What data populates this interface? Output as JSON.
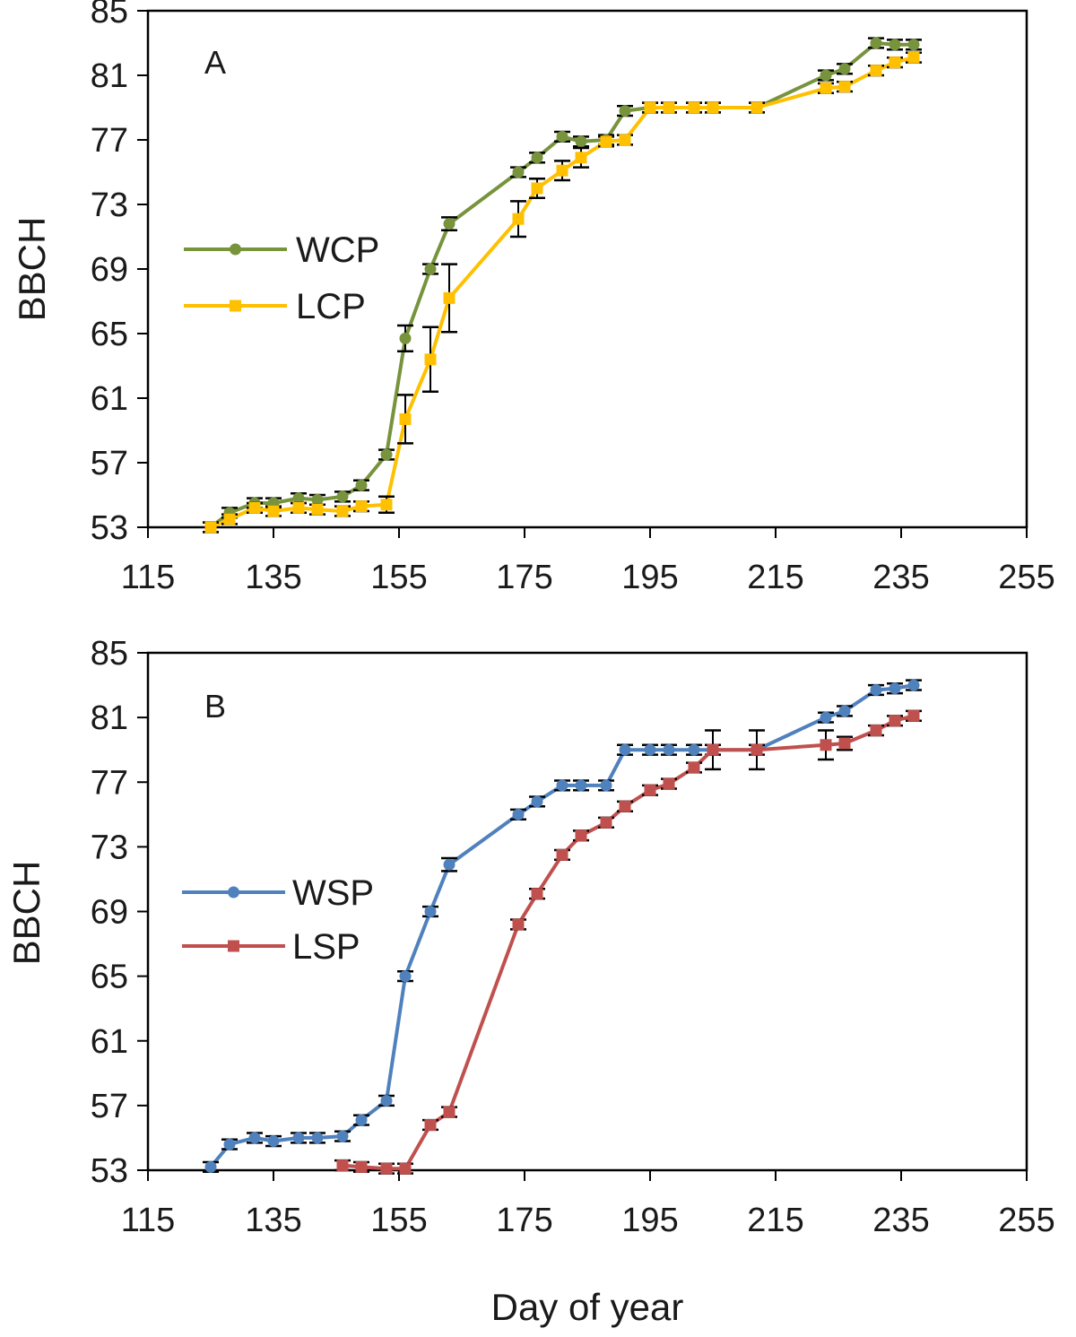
{
  "figure": {
    "xlabel": "Day of year"
  },
  "chart_data": [
    {
      "type": "line",
      "panel_label": "A",
      "ylabel": "BBCH",
      "xlim": [
        115,
        255
      ],
      "ylim": [
        53,
        85
      ],
      "x_ticks": [
        "115",
        "135",
        "155",
        "175",
        "195",
        "215",
        "235",
        "255"
      ],
      "y_ticks": [
        "53",
        "57",
        "61",
        "65",
        "69",
        "73",
        "77",
        "81",
        "85"
      ],
      "legend_position": "middle-left",
      "grid": false,
      "series": [
        {
          "name": "WCP",
          "color": "#77933c",
          "marker": "circle",
          "points": [
            {
              "x": 125,
              "y": 53.0,
              "err": 0.3
            },
            {
              "x": 128,
              "y": 53.9,
              "err": 0.3
            },
            {
              "x": 132,
              "y": 54.5,
              "err": 0.3
            },
            {
              "x": 135,
              "y": 54.5,
              "err": 0.3
            },
            {
              "x": 139,
              "y": 54.8,
              "err": 0.3
            },
            {
              "x": 142,
              "y": 54.7,
              "err": 0.3
            },
            {
              "x": 146,
              "y": 54.9,
              "err": 0.3
            },
            {
              "x": 149,
              "y": 55.6,
              "err": 0.3
            },
            {
              "x": 153,
              "y": 57.5,
              "err": 0.3
            },
            {
              "x": 156,
              "y": 64.7,
              "err": 0.8
            },
            {
              "x": 160,
              "y": 69.0,
              "err": 0.3
            },
            {
              "x": 163,
              "y": 71.8,
              "err": 0.4
            },
            {
              "x": 174,
              "y": 75.0,
              "err": 0.3
            },
            {
              "x": 177,
              "y": 75.9,
              "err": 0.3
            },
            {
              "x": 181,
              "y": 77.2,
              "err": 0.3
            },
            {
              "x": 184,
              "y": 76.9,
              "err": 0.3
            },
            {
              "x": 188,
              "y": 77.0,
              "err": 0.3
            },
            {
              "x": 191,
              "y": 78.8,
              "err": 0.3
            },
            {
              "x": 195,
              "y": 79.0,
              "err": 0.3
            },
            {
              "x": 198,
              "y": 79.0,
              "err": 0.3
            },
            {
              "x": 202,
              "y": 79.0,
              "err": 0.3
            },
            {
              "x": 205,
              "y": 79.0,
              "err": 0.3
            },
            {
              "x": 212,
              "y": 79.0,
              "err": 0.3
            },
            {
              "x": 223,
              "y": 81.0,
              "err": 0.3
            },
            {
              "x": 226,
              "y": 81.4,
              "err": 0.3
            },
            {
              "x": 231,
              "y": 83.0,
              "err": 0.3
            },
            {
              "x": 234,
              "y": 82.9,
              "err": 0.3
            },
            {
              "x": 237,
              "y": 82.9,
              "err": 0.3
            }
          ]
        },
        {
          "name": "LCP",
          "color": "#ffc000",
          "marker": "square",
          "points": [
            {
              "x": 125,
              "y": 53.0,
              "err": 0.3
            },
            {
              "x": 128,
              "y": 53.5,
              "err": 0.3
            },
            {
              "x": 132,
              "y": 54.2,
              "err": 0.3
            },
            {
              "x": 135,
              "y": 54.0,
              "err": 0.3
            },
            {
              "x": 139,
              "y": 54.2,
              "err": 0.3
            },
            {
              "x": 142,
              "y": 54.1,
              "err": 0.3
            },
            {
              "x": 146,
              "y": 54.0,
              "err": 0.3
            },
            {
              "x": 149,
              "y": 54.3,
              "err": 0.3
            },
            {
              "x": 153,
              "y": 54.4,
              "err": 0.5
            },
            {
              "x": 156,
              "y": 59.7,
              "err": 1.5
            },
            {
              "x": 160,
              "y": 63.4,
              "err": 2.0
            },
            {
              "x": 163,
              "y": 67.2,
              "err": 2.1
            },
            {
              "x": 174,
              "y": 72.1,
              "err": 1.1
            },
            {
              "x": 177,
              "y": 74.0,
              "err": 0.6
            },
            {
              "x": 181,
              "y": 75.1,
              "err": 0.6
            },
            {
              "x": 184,
              "y": 75.9,
              "err": 0.6
            },
            {
              "x": 188,
              "y": 76.9,
              "err": 0.3
            },
            {
              "x": 191,
              "y": 77.0,
              "err": 0.3
            },
            {
              "x": 195,
              "y": 79.0,
              "err": 0.3
            },
            {
              "x": 198,
              "y": 79.0,
              "err": 0.3
            },
            {
              "x": 202,
              "y": 79.0,
              "err": 0.3
            },
            {
              "x": 205,
              "y": 79.0,
              "err": 0.3
            },
            {
              "x": 212,
              "y": 79.0,
              "err": 0.3
            },
            {
              "x": 223,
              "y": 80.2,
              "err": 0.3
            },
            {
              "x": 226,
              "y": 80.3,
              "err": 0.3
            },
            {
              "x": 231,
              "y": 81.3,
              "err": 0.3
            },
            {
              "x": 234,
              "y": 81.8,
              "err": 0.3
            },
            {
              "x": 237,
              "y": 82.1,
              "err": 0.3
            }
          ]
        }
      ]
    },
    {
      "type": "line",
      "panel_label": "B",
      "ylabel": "BBCH",
      "xlim": [
        115,
        255
      ],
      "ylim": [
        53,
        85
      ],
      "x_ticks": [
        "115",
        "135",
        "155",
        "175",
        "195",
        "215",
        "235",
        "255"
      ],
      "y_ticks": [
        "53",
        "57",
        "61",
        "65",
        "69",
        "73",
        "77",
        "81",
        "85"
      ],
      "legend_position": "middle-left",
      "grid": false,
      "series": [
        {
          "name": "WSP",
          "color": "#4f81bd",
          "marker": "circle",
          "points": [
            {
              "x": 125,
              "y": 53.2,
              "err": 0.3
            },
            {
              "x": 128,
              "y": 54.6,
              "err": 0.3
            },
            {
              "x": 132,
              "y": 55.0,
              "err": 0.3
            },
            {
              "x": 135,
              "y": 54.8,
              "err": 0.3
            },
            {
              "x": 139,
              "y": 55.0,
              "err": 0.3
            },
            {
              "x": 142,
              "y": 55.0,
              "err": 0.3
            },
            {
              "x": 146,
              "y": 55.1,
              "err": 0.3
            },
            {
              "x": 149,
              "y": 56.1,
              "err": 0.3
            },
            {
              "x": 153,
              "y": 57.3,
              "err": 0.3
            },
            {
              "x": 156,
              "y": 65.0,
              "err": 0.3
            },
            {
              "x": 160,
              "y": 69.0,
              "err": 0.3
            },
            {
              "x": 163,
              "y": 71.9,
              "err": 0.4
            },
            {
              "x": 174,
              "y": 75.0,
              "err": 0.3
            },
            {
              "x": 177,
              "y": 75.8,
              "err": 0.3
            },
            {
              "x": 181,
              "y": 76.8,
              "err": 0.3
            },
            {
              "x": 184,
              "y": 76.8,
              "err": 0.3
            },
            {
              "x": 188,
              "y": 76.8,
              "err": 0.3
            },
            {
              "x": 191,
              "y": 79.0,
              "err": 0.3
            },
            {
              "x": 195,
              "y": 79.0,
              "err": 0.3
            },
            {
              "x": 198,
              "y": 79.0,
              "err": 0.3
            },
            {
              "x": 202,
              "y": 79.0,
              "err": 0.3
            },
            {
              "x": 205,
              "y": 79.0,
              "err": 0.3
            },
            {
              "x": 212,
              "y": 79.0,
              "err": 0.3
            },
            {
              "x": 223,
              "y": 81.0,
              "err": 0.3
            },
            {
              "x": 226,
              "y": 81.4,
              "err": 0.3
            },
            {
              "x": 231,
              "y": 82.7,
              "err": 0.3
            },
            {
              "x": 234,
              "y": 82.8,
              "err": 0.3
            },
            {
              "x": 237,
              "y": 83.0,
              "err": 0.3
            }
          ]
        },
        {
          "name": "LSP",
          "color": "#c0504d",
          "marker": "square",
          "points": [
            {
              "x": 146,
              "y": 53.3,
              "err": 0.3
            },
            {
              "x": 149,
              "y": 53.2,
              "err": 0.3
            },
            {
              "x": 153,
              "y": 53.1,
              "err": 0.3
            },
            {
              "x": 156,
              "y": 53.1,
              "err": 0.3
            },
            {
              "x": 160,
              "y": 55.8,
              "err": 0.3
            },
            {
              "x": 163,
              "y": 56.6,
              "err": 0.3
            },
            {
              "x": 174,
              "y": 68.2,
              "err": 0.3
            },
            {
              "x": 177,
              "y": 70.1,
              "err": 0.3
            },
            {
              "x": 181,
              "y": 72.5,
              "err": 0.3
            },
            {
              "x": 184,
              "y": 73.7,
              "err": 0.3
            },
            {
              "x": 188,
              "y": 74.5,
              "err": 0.3
            },
            {
              "x": 191,
              "y": 75.5,
              "err": 0.3
            },
            {
              "x": 195,
              "y": 76.5,
              "err": 0.3
            },
            {
              "x": 198,
              "y": 76.9,
              "err": 0.3
            },
            {
              "x": 202,
              "y": 77.9,
              "err": 0.3
            },
            {
              "x": 205,
              "y": 79.0,
              "err": 1.2
            },
            {
              "x": 212,
              "y": 79.0,
              "err": 1.2
            },
            {
              "x": 223,
              "y": 79.3,
              "err": 0.9
            },
            {
              "x": 226,
              "y": 79.4,
              "err": 0.4
            },
            {
              "x": 231,
              "y": 80.2,
              "err": 0.3
            },
            {
              "x": 234,
              "y": 80.8,
              "err": 0.3
            },
            {
              "x": 237,
              "y": 81.1,
              "err": 0.3
            }
          ]
        }
      ]
    }
  ]
}
